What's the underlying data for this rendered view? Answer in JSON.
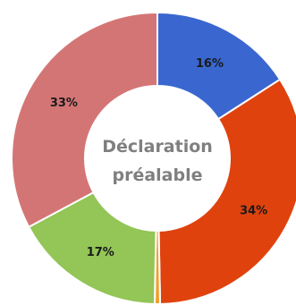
{
  "chart_data": {
    "type": "pie",
    "variant": "donut",
    "center_label_lines": [
      "Déclaration",
      "préalable"
    ],
    "slices": [
      {
        "label": "16%",
        "value": 16,
        "color": "#3a67cf"
      },
      {
        "label": "34%",
        "value": 34,
        "color": "#e0420e"
      },
      {
        "label": "",
        "value": 0.6,
        "color": "#f0a030"
      },
      {
        "label": "17%",
        "value": 17,
        "color": "#93c557"
      },
      {
        "label": "33%",
        "value": 33,
        "color": "#d47575"
      }
    ]
  }
}
